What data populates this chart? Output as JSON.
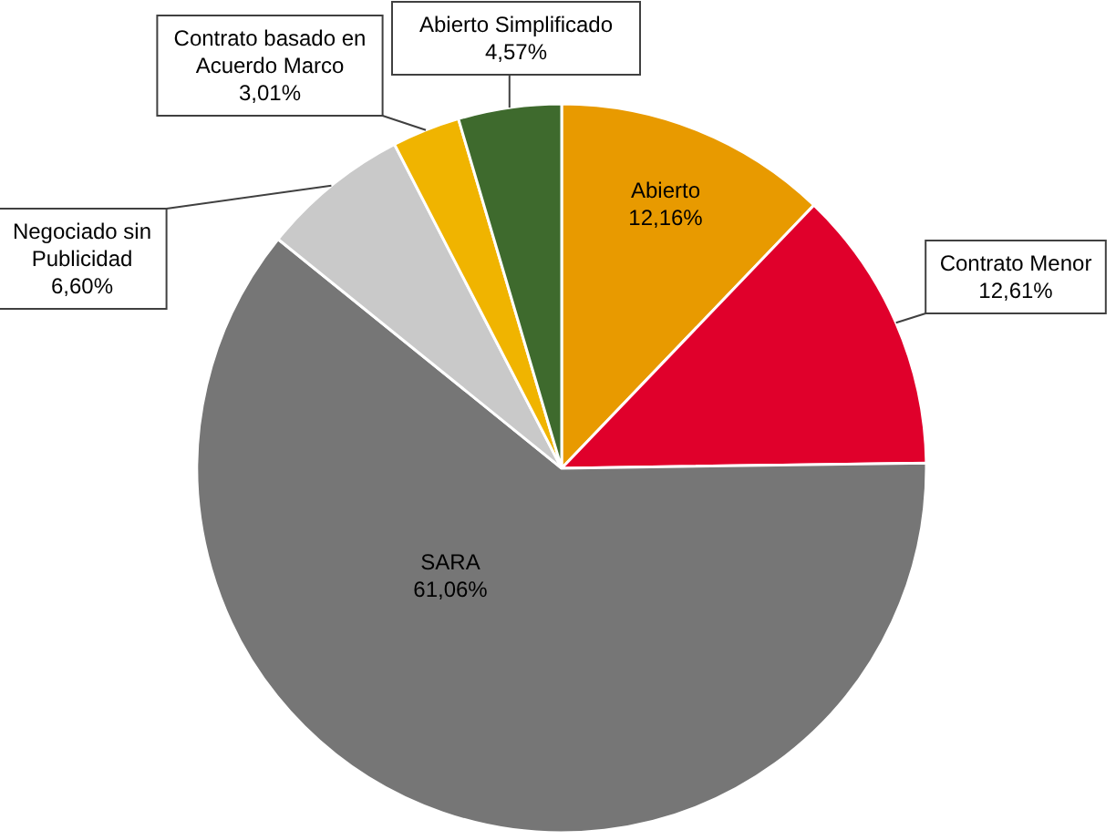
{
  "chart_data": {
    "type": "pie",
    "categories": [
      "Abierto",
      "Contrato Menor",
      "SARA",
      "Negociado sin Publicidad",
      "Contrato basado en Acuerdo Marco",
      "Abierto Simplificado"
    ],
    "values": [
      12.16,
      12.61,
      61.06,
      6.6,
      3.01,
      4.57
    ],
    "colors": [
      "#e89a00",
      "#e0002b",
      "#767676",
      "#c9c9c9",
      "#f0b400",
      "#3e6a2d"
    ],
    "value_labels": [
      "12,16%",
      "12,61%",
      "61,06%",
      "6,60%",
      "3,01%",
      "4,57%"
    ]
  }
}
